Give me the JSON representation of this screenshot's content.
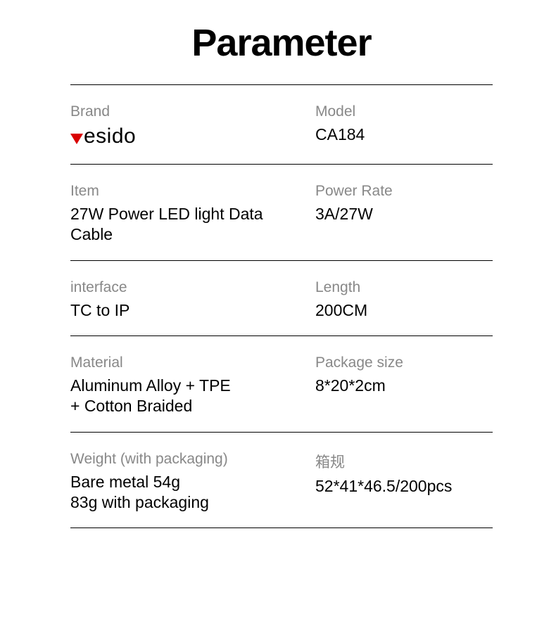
{
  "title": "Parameter",
  "colors": {
    "text": "#000000",
    "label": "#888888",
    "divider": "#000000",
    "logo_accent": "#d90000",
    "background": "#ffffff"
  },
  "typography": {
    "title_fontsize": 54,
    "title_weight": 800,
    "label_fontsize": 21,
    "value_fontsize": 23,
    "logo_fontsize": 30
  },
  "logo": {
    "text": "esido",
    "accent_shape": "down-triangle",
    "accent_color": "#d90000"
  },
  "rows": [
    {
      "left": {
        "label": "Brand",
        "is_logo": true
      },
      "right": {
        "label": "Model",
        "value": "CA184"
      }
    },
    {
      "left": {
        "label": "Item",
        "value": "27W Power LED light Data Cable"
      },
      "right": {
        "label": "Power Rate",
        "value": "3A/27W"
      }
    },
    {
      "left": {
        "label": "interface",
        "value": "TC to IP"
      },
      "right": {
        "label": "Length",
        "value": "200CM"
      }
    },
    {
      "left": {
        "label": "Material",
        "value": "Aluminum Alloy + TPE\n+ Cotton Braided"
      },
      "right": {
        "label": "Package size",
        "value": "8*20*2cm"
      }
    },
    {
      "left": {
        "label": "Weight (with packaging)",
        "value": "Bare metal 54g\n83g with packaging"
      },
      "right": {
        "label": "箱规",
        "value": "52*41*46.5/200pcs"
      }
    }
  ]
}
